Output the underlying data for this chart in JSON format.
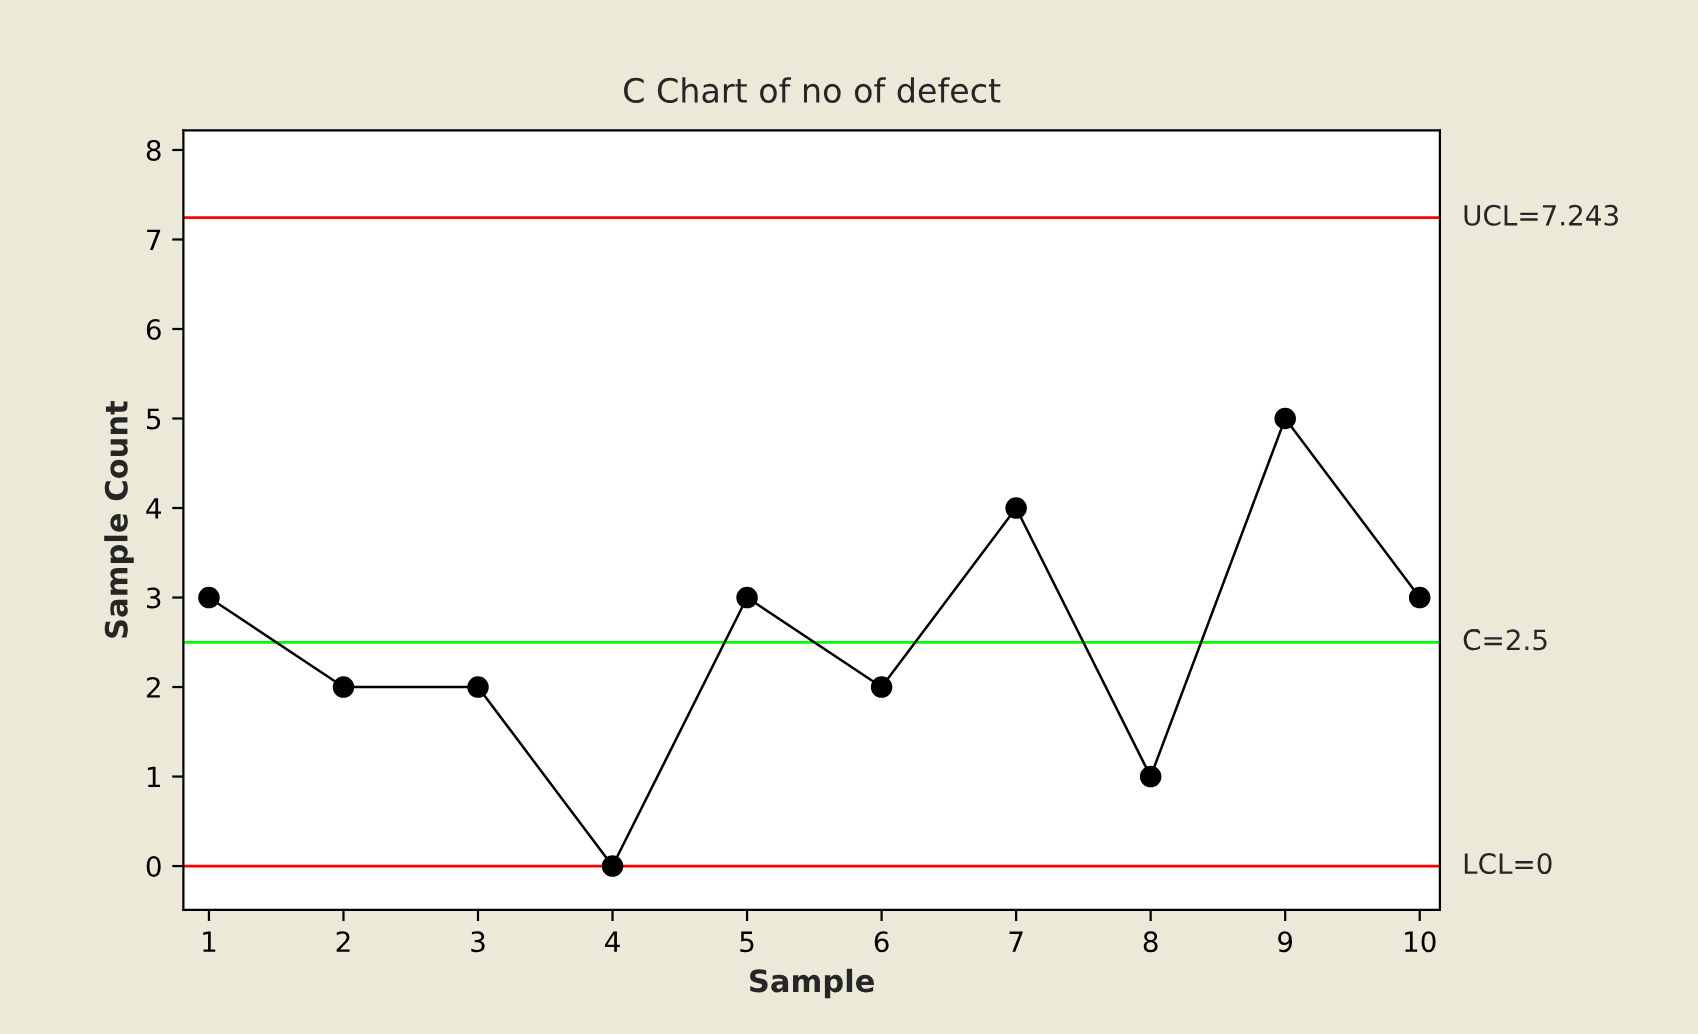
{
  "chart_data": {
    "type": "line",
    "title": "C Chart of no of defect",
    "xlabel": "Sample",
    "ylabel": "Sample Count",
    "x": [
      1,
      2,
      3,
      4,
      5,
      6,
      7,
      8,
      9,
      10
    ],
    "series": [
      {
        "color": "#000000",
        "values": [
          3,
          2,
          2,
          0,
          3,
          2,
          4,
          1,
          5,
          3
        ]
      }
    ],
    "xlim": [
      0.81,
      10.15
    ],
    "xticks": [
      1,
      2,
      3,
      4,
      5,
      6,
      7,
      8,
      9,
      10
    ],
    "ylim": [
      -0.49,
      8.22
    ],
    "yticks": [
      0,
      1,
      2,
      3,
      4,
      5,
      6,
      7,
      8
    ],
    "ref_lines": [
      {
        "axis": "y",
        "value": 7.243,
        "label": "UCL=7.243",
        "color": "#ff0000"
      },
      {
        "axis": "y",
        "value": 2.5,
        "label": "C̄=2.5",
        "color": "#00ff00"
      },
      {
        "axis": "y",
        "value": 0,
        "label": "LCL=0",
        "color": "#ff0000"
      }
    ],
    "marker": "circle",
    "line_style": "solid",
    "grid": false,
    "legend": false
  }
}
